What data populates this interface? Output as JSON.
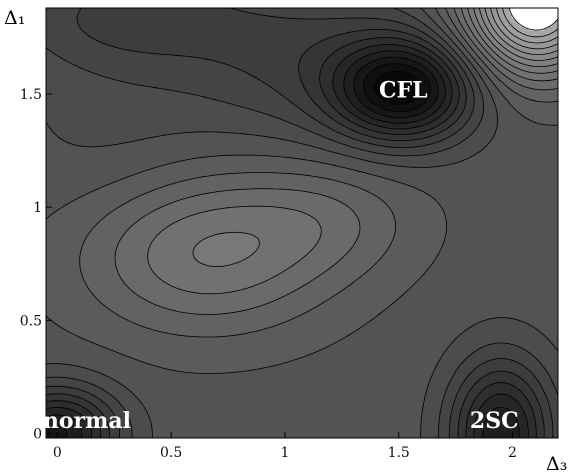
{
  "chart_data": {
    "type": "contour",
    "xlabel": "Δ₃",
    "ylabel": "Δ₁",
    "xlim": [
      -0.05,
      2.2
    ],
    "ylim": [
      -0.02,
      1.88
    ],
    "xticks": [
      "0",
      "0.5",
      "1",
      "1.5",
      "2"
    ],
    "xtick_values": [
      0,
      0.5,
      1,
      1.5,
      2
    ],
    "yticks": [
      "0",
      "0.5",
      "1",
      "1.5"
    ],
    "ytick_values": [
      0,
      0.5,
      1,
      1.5
    ],
    "colormap": "grayscale (darker = lower value)",
    "contour_levels": 22,
    "annotations": [
      {
        "text": "CFL",
        "x": 1.52,
        "y": 1.51
      },
      {
        "text": "2SC",
        "x": 1.92,
        "y": 0.05
      },
      {
        "text": "normal",
        "x": 0.13,
        "y": 0.05
      }
    ],
    "minima": [
      {
        "name": "CFL",
        "x": 1.5,
        "y": 1.5
      },
      {
        "name": "2SC",
        "x": 1.95,
        "y": 0.0
      },
      {
        "name": "normal",
        "x": 0.0,
        "y": 0.0
      }
    ],
    "local_maximum": {
      "x": 0.65,
      "y": 0.8
    }
  }
}
